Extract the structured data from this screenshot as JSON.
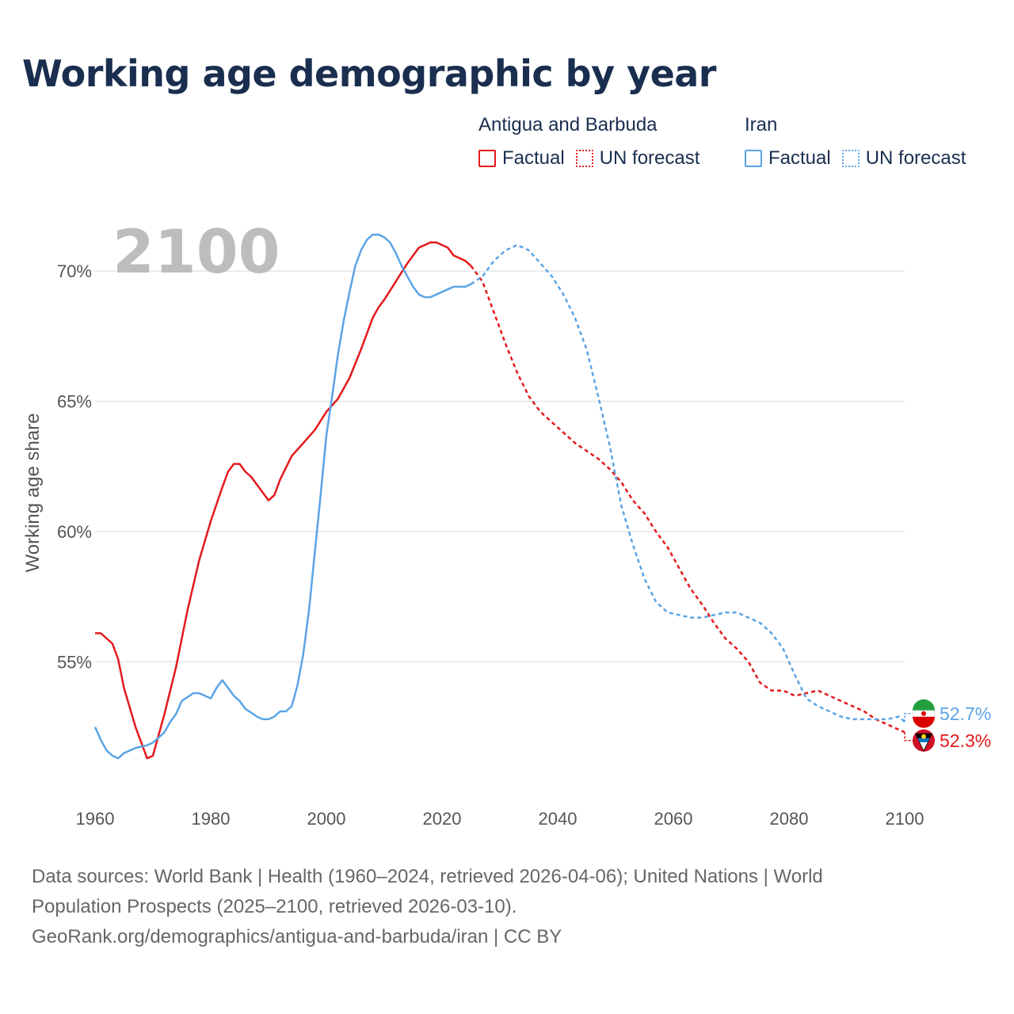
{
  "title": "Working age demographic by year",
  "year_label": "2100",
  "legend": {
    "groups": [
      {
        "country": "Antigua and Barbuda",
        "factual_label": "Factual",
        "forecast_label": "UN forecast",
        "color": "#e31a1c"
      },
      {
        "country": "Iran",
        "factual_label": "Factual",
        "forecast_label": "UN forecast",
        "color": "#5ba4e5"
      }
    ]
  },
  "chart_data": {
    "type": "line",
    "title": "Working age demographic by year",
    "xlabel": "",
    "ylabel": "Working age share",
    "xlim": [
      1960,
      2100
    ],
    "ylim": [
      50,
      72.5
    ],
    "x_ticks": [
      1960,
      1980,
      2000,
      2020,
      2040,
      2060,
      2080,
      2100
    ],
    "y_ticks": [
      55,
      60,
      65,
      70
    ],
    "y_tick_labels": [
      "55%",
      "60%",
      "65%",
      "70%"
    ],
    "grid": true,
    "factual_end_year": 2025,
    "series": [
      {
        "name": "Antigua and Barbuda",
        "color": "#e31a1c",
        "end_label": "52.3%",
        "points": [
          [
            1960,
            56.1
          ],
          [
            1961,
            56.1
          ],
          [
            1963,
            55.7
          ],
          [
            1964,
            55.1
          ],
          [
            1965,
            54
          ],
          [
            1967,
            52.5
          ],
          [
            1969,
            51.3
          ],
          [
            1970,
            51.4
          ],
          [
            1972,
            53
          ],
          [
            1974,
            54.8
          ],
          [
            1976,
            57
          ],
          [
            1978,
            58.9
          ],
          [
            1980,
            60.4
          ],
          [
            1982,
            61.7
          ],
          [
            1983,
            62.3
          ],
          [
            1984,
            62.6
          ],
          [
            1985,
            62.6
          ],
          [
            1986,
            62.3
          ],
          [
            1987,
            62.1
          ],
          [
            1988,
            61.8
          ],
          [
            1989,
            61.5
          ],
          [
            1990,
            61.2
          ],
          [
            1991,
            61.4
          ],
          [
            1992,
            62
          ],
          [
            1994,
            62.9
          ],
          [
            1996,
            63.4
          ],
          [
            1998,
            63.9
          ],
          [
            2000,
            64.6
          ],
          [
            2002,
            65.1
          ],
          [
            2004,
            65.9
          ],
          [
            2006,
            67
          ],
          [
            2008,
            68.2
          ],
          [
            2009,
            68.6
          ],
          [
            2010,
            68.9
          ],
          [
            2012,
            69.6
          ],
          [
            2014,
            70.3
          ],
          [
            2016,
            70.9
          ],
          [
            2018,
            71.1
          ],
          [
            2019,
            71.1
          ],
          [
            2021,
            70.9
          ],
          [
            2022,
            70.6
          ],
          [
            2023,
            70.5
          ],
          [
            2024,
            70.4
          ],
          [
            2025,
            70.2
          ],
          [
            2027,
            69.6
          ],
          [
            2029,
            68.4
          ],
          [
            2031,
            67.2
          ],
          [
            2033,
            66.1
          ],
          [
            2035,
            65.2
          ],
          [
            2037,
            64.6
          ],
          [
            2039,
            64.2
          ],
          [
            2041,
            63.8
          ],
          [
            2043,
            63.4
          ],
          [
            2045,
            63.1
          ],
          [
            2047,
            62.8
          ],
          [
            2049,
            62.4
          ],
          [
            2051,
            61.9
          ],
          [
            2053,
            61.2
          ],
          [
            2055,
            60.7
          ],
          [
            2057,
            60
          ],
          [
            2059,
            59.4
          ],
          [
            2061,
            58.6
          ],
          [
            2063,
            57.8
          ],
          [
            2065,
            57.2
          ],
          [
            2067,
            56.5
          ],
          [
            2069,
            55.9
          ],
          [
            2071,
            55.5
          ],
          [
            2073,
            55
          ],
          [
            2075,
            54.2
          ],
          [
            2077,
            53.9
          ],
          [
            2079,
            53.9
          ],
          [
            2081,
            53.7
          ],
          [
            2083,
            53.8
          ],
          [
            2085,
            53.9
          ],
          [
            2087,
            53.7
          ],
          [
            2089,
            53.5
          ],
          [
            2091,
            53.3
          ],
          [
            2093,
            53.1
          ],
          [
            2095,
            52.8
          ],
          [
            2097,
            52.6
          ],
          [
            2099,
            52.4
          ],
          [
            2100,
            52.3
          ]
        ]
      },
      {
        "name": "Iran",
        "color": "#5ba4e5",
        "end_label": "52.7%",
        "points": [
          [
            1960,
            52.5
          ],
          [
            1961,
            52
          ],
          [
            1962,
            51.6
          ],
          [
            1963,
            51.4
          ],
          [
            1964,
            51.3
          ],
          [
            1965,
            51.5
          ],
          [
            1967,
            51.7
          ],
          [
            1969,
            51.8
          ],
          [
            1970,
            51.9
          ],
          [
            1972,
            52.3
          ],
          [
            1973,
            52.7
          ],
          [
            1974,
            53
          ],
          [
            1975,
            53.5
          ],
          [
            1977,
            53.8
          ],
          [
            1978,
            53.8
          ],
          [
            1980,
            53.6
          ],
          [
            1981,
            54
          ],
          [
            1982,
            54.3
          ],
          [
            1983,
            54
          ],
          [
            1984,
            53.7
          ],
          [
            1985,
            53.5
          ],
          [
            1986,
            53.2
          ],
          [
            1988,
            52.9
          ],
          [
            1989,
            52.8
          ],
          [
            1990,
            52.8
          ],
          [
            1991,
            52.9
          ],
          [
            1992,
            53.1
          ],
          [
            1993,
            53.1
          ],
          [
            1994,
            53.3
          ],
          [
            1995,
            54.1
          ],
          [
            1996,
            55.3
          ],
          [
            1997,
            57
          ],
          [
            1998,
            59.2
          ],
          [
            1999,
            61.4
          ],
          [
            2000,
            63.7
          ],
          [
            2001,
            65.2
          ],
          [
            2002,
            66.8
          ],
          [
            2003,
            68.1
          ],
          [
            2004,
            69.2
          ],
          [
            2005,
            70.2
          ],
          [
            2006,
            70.8
          ],
          [
            2007,
            71.2
          ],
          [
            2008,
            71.4
          ],
          [
            2009,
            71.4
          ],
          [
            2010,
            71.3
          ],
          [
            2011,
            71.1
          ],
          [
            2012,
            70.7
          ],
          [
            2013,
            70.2
          ],
          [
            2014,
            69.8
          ],
          [
            2015,
            69.4
          ],
          [
            2016,
            69.1
          ],
          [
            2017,
            69
          ],
          [
            2018,
            69
          ],
          [
            2019,
            69.1
          ],
          [
            2020,
            69.2
          ],
          [
            2021,
            69.3
          ],
          [
            2022,
            69.4
          ],
          [
            2023,
            69.4
          ],
          [
            2024,
            69.4
          ],
          [
            2025,
            69.5
          ],
          [
            2027,
            69.8
          ],
          [
            2029,
            70.4
          ],
          [
            2031,
            70.8
          ],
          [
            2033,
            71
          ],
          [
            2035,
            70.8
          ],
          [
            2037,
            70.3
          ],
          [
            2039,
            69.8
          ],
          [
            2041,
            69.1
          ],
          [
            2043,
            68.2
          ],
          [
            2045,
            67
          ],
          [
            2047,
            65.2
          ],
          [
            2049,
            63.3
          ],
          [
            2051,
            61
          ],
          [
            2053,
            59.5
          ],
          [
            2055,
            58.2
          ],
          [
            2057,
            57.3
          ],
          [
            2059,
            56.9
          ],
          [
            2061,
            56.8
          ],
          [
            2063,
            56.7
          ],
          [
            2065,
            56.7
          ],
          [
            2067,
            56.8
          ],
          [
            2069,
            56.9
          ],
          [
            2071,
            56.9
          ],
          [
            2073,
            56.7
          ],
          [
            2075,
            56.5
          ],
          [
            2077,
            56.1
          ],
          [
            2079,
            55.5
          ],
          [
            2081,
            54.5
          ],
          [
            2083,
            53.6
          ],
          [
            2085,
            53.3
          ],
          [
            2087,
            53.1
          ],
          [
            2089,
            52.9
          ],
          [
            2091,
            52.8
          ],
          [
            2093,
            52.8
          ],
          [
            2095,
            52.8
          ],
          [
            2097,
            52.8
          ],
          [
            2099,
            52.9
          ],
          [
            2100,
            52.7
          ]
        ]
      }
    ]
  },
  "footer": {
    "line1": "Data sources: World Bank | Health (1960–2024, retrieved 2026-04-06); United Nations | World",
    "line2": "Population Prospects (2025–2100, retrieved 2026-03-10).",
    "line3": "GeoRank.org/demographics/antigua-and-barbuda/iran | CC BY"
  }
}
